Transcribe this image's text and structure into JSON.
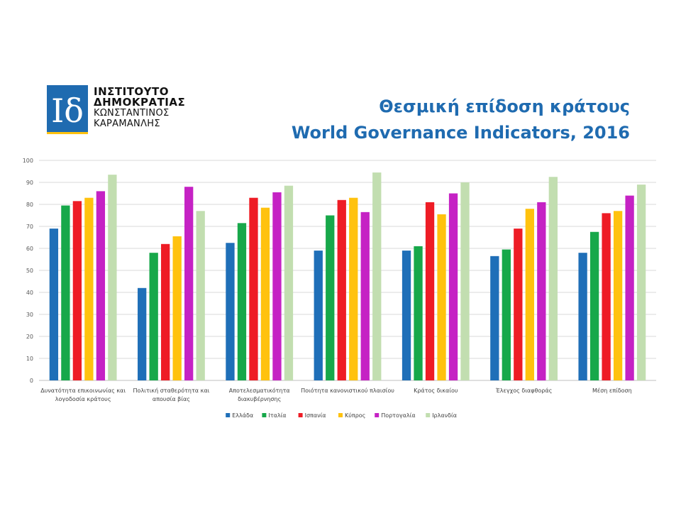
{
  "logo": {
    "monogram": "Ιδ",
    "line1": "ΙΝΣΤΙΤΟΥΤΟ",
    "line2": "ΔΗΜΟΚΡΑΤΙΑΣ",
    "line3": "ΚΩΝΣΤΑΝΤΙΝΟΣ",
    "line4": "ΚΑΡΑΜΑΝΛΗΣ",
    "color": "#1f6bb0"
  },
  "header": {
    "title_gr": "Θεσμική επίδοση κράτους",
    "title_en": "World Governance Indicators, 2016"
  },
  "chart_data": {
    "type": "bar",
    "categories": [
      [
        "Δυνατότητα επικοινωνίας και",
        "λογοδοσία κράτους"
      ],
      [
        "Πολιτική σταθερότητα και",
        "απουσία βίας"
      ],
      [
        "Αποτελεσματικότητα",
        "διακυβέρνησης"
      ],
      [
        "Ποιότητα κανονιστικού πλαισίου"
      ],
      [
        "Κράτος δικαίου"
      ],
      [
        "Έλεγχος διαφθοράς"
      ],
      [
        "Μέση επίδοση"
      ]
    ],
    "series": [
      {
        "name": "Ελλάδα",
        "color": "#1f6fb8",
        "values": [
          69,
          42,
          62.5,
          59,
          59,
          56.5,
          58
        ]
      },
      {
        "name": "Ιταλία",
        "color": "#17a84a",
        "values": [
          79.5,
          58,
          71.5,
          75,
          61,
          59.5,
          67.5
        ]
      },
      {
        "name": "Ισπανία",
        "color": "#ee1c25",
        "values": [
          81.5,
          62,
          83,
          82,
          81,
          69,
          76
        ]
      },
      {
        "name": "Κύπρος",
        "color": "#ffc20e",
        "values": [
          83,
          65.5,
          78.5,
          83,
          75.5,
          78,
          77
        ]
      },
      {
        "name": "Πορτογαλία",
        "color": "#c522c4",
        "values": [
          86,
          88,
          85.5,
          76.5,
          85,
          81,
          84
        ]
      },
      {
        "name": "Ιρλανδία",
        "color": "#c2deb0",
        "values": [
          93.5,
          77,
          88.5,
          94.5,
          90,
          92.5,
          89
        ]
      }
    ],
    "yticks": [
      "0",
      "10",
      "20",
      "30",
      "40",
      "50",
      "60",
      "70",
      "80",
      "90",
      "100"
    ],
    "ylim": [
      0,
      100
    ],
    "grid": true,
    "legend": "bottom"
  }
}
